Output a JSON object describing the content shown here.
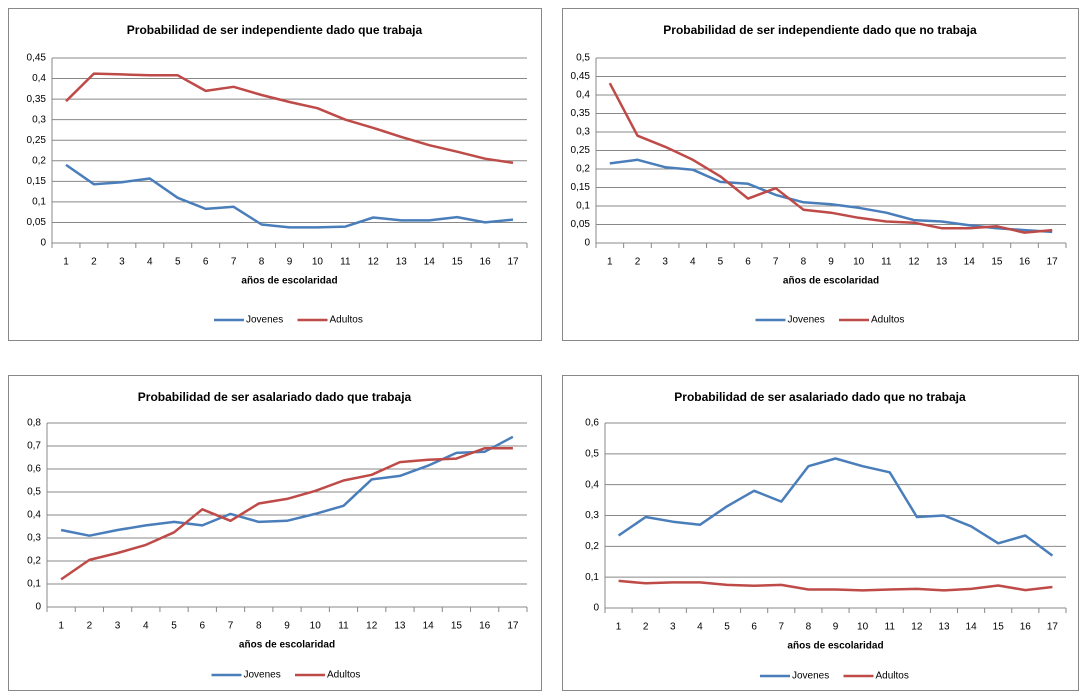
{
  "chart_data": [
    {
      "type": "line",
      "title": "Probabilidad de ser independiente dado que trabaja",
      "x_label": "años de escolaridad",
      "categories": [
        "1",
        "2",
        "3",
        "4",
        "5",
        "6",
        "7",
        "8",
        "9",
        "10",
        "11",
        "12",
        "13",
        "14",
        "15",
        "16",
        "17"
      ],
      "series": [
        {
          "name": "Jovenes",
          "color": "#4a7ebb",
          "values": [
            0.19,
            0.143,
            0.148,
            0.157,
            0.11,
            0.083,
            0.088,
            0.045,
            0.038,
            0.038,
            0.04,
            0.062,
            0.055,
            0.055,
            0.063,
            0.05,
            0.057
          ]
        },
        {
          "name": "Adultos",
          "color": "#be4b48",
          "values": [
            0.345,
            0.412,
            0.41,
            0.408,
            0.408,
            0.37,
            0.38,
            0.36,
            0.343,
            0.328,
            0.3,
            0.28,
            0.258,
            0.238,
            0.222,
            0.205,
            0.195
          ]
        }
      ],
      "ylim": [
        0,
        0.45
      ],
      "yticks": [
        0,
        {
          "value": 0.05,
          "label": "0,05"
        },
        {
          "value": 0.1,
          "label": "0,1"
        },
        {
          "value": 0.15,
          "label": "0,15"
        },
        {
          "value": 0.2,
          "label": "0,2"
        },
        {
          "value": 0.25,
          "label": "0,25"
        },
        {
          "value": 0.3,
          "label": "0,3"
        },
        {
          "value": 0.35,
          "label": "0,35"
        },
        {
          "value": 0.4,
          "label": "0,4"
        },
        {
          "value": 0.45,
          "label": "0,45"
        }
      ],
      "grid": true,
      "legend": "bottom"
    },
    {
      "type": "line",
      "title": "Probabilidad de ser independiente dado que no trabaja",
      "x_label": "años de escolaridad",
      "categories": [
        "1",
        "2",
        "3",
        "4",
        "5",
        "6",
        "7",
        "8",
        "9",
        "10",
        "11",
        "12",
        "13",
        "14",
        "15",
        "16",
        "17"
      ],
      "series": [
        {
          "name": "Jovenes",
          "color": "#4a7ebb",
          "values": [
            0.215,
            0.225,
            0.205,
            0.198,
            0.165,
            0.16,
            0.13,
            0.11,
            0.105,
            0.095,
            0.082,
            0.062,
            0.058,
            0.048,
            0.04,
            0.035,
            0.03
          ]
        },
        {
          "name": "Adultos",
          "color": "#be4b48",
          "values": [
            0.432,
            0.29,
            0.26,
            0.225,
            0.18,
            0.12,
            0.148,
            0.09,
            0.082,
            0.068,
            0.058,
            0.055,
            0.04,
            0.04,
            0.045,
            0.028,
            0.035
          ]
        }
      ],
      "ylim": [
        0,
        0.5
      ],
      "yticks": [
        0,
        {
          "value": 0.05,
          "label": "0,05"
        },
        {
          "value": 0.1,
          "label": "0,1"
        },
        {
          "value": 0.15,
          "label": "0,15"
        },
        {
          "value": 0.2,
          "label": "0,2"
        },
        {
          "value": 0.25,
          "label": "0,25"
        },
        {
          "value": 0.3,
          "label": "0,3"
        },
        {
          "value": 0.35,
          "label": "0,35"
        },
        {
          "value": 0.4,
          "label": "0,4"
        },
        {
          "value": 0.45,
          "label": "0,45"
        },
        {
          "value": 0.5,
          "label": "0,5"
        }
      ],
      "grid": true,
      "legend": "bottom"
    },
    {
      "type": "line",
      "title": "Probabilidad de ser asalariado dado que trabaja",
      "x_label": "años de escolaridad",
      "categories": [
        "1",
        "2",
        "3",
        "4",
        "5",
        "6",
        "7",
        "8",
        "9",
        "10",
        "11",
        "12",
        "13",
        "14",
        "15",
        "16",
        "17"
      ],
      "series": [
        {
          "name": "Jovenes",
          "color": "#4a7ebb",
          "values": [
            0.335,
            0.31,
            0.335,
            0.355,
            0.37,
            0.355,
            0.405,
            0.37,
            0.375,
            0.405,
            0.44,
            0.555,
            0.57,
            0.615,
            0.67,
            0.675,
            0.74
          ]
        },
        {
          "name": "Adultos",
          "color": "#be4b48",
          "values": [
            0.12,
            0.205,
            0.235,
            0.27,
            0.325,
            0.425,
            0.375,
            0.45,
            0.47,
            0.505,
            0.55,
            0.575,
            0.63,
            0.64,
            0.645,
            0.69,
            0.69
          ]
        }
      ],
      "ylim": [
        0,
        0.8
      ],
      "yticks": [
        0,
        {
          "value": 0.1,
          "label": "0,1"
        },
        {
          "value": 0.2,
          "label": "0,2"
        },
        {
          "value": 0.3,
          "label": "0,3"
        },
        {
          "value": 0.4,
          "label": "0,4"
        },
        {
          "value": 0.5,
          "label": "0,5"
        },
        {
          "value": 0.6,
          "label": "0,6"
        },
        {
          "value": 0.7,
          "label": "0,7"
        },
        {
          "value": 0.8,
          "label": "0,8"
        }
      ],
      "grid": true,
      "legend": "bottom"
    },
    {
      "type": "line",
      "title": "Probabilidad de ser asalariado dado que no trabaja",
      "x_label": "años de escolaridad",
      "categories": [
        "1",
        "2",
        "3",
        "4",
        "5",
        "6",
        "7",
        "8",
        "9",
        "10",
        "11",
        "12",
        "13",
        "14",
        "15",
        "16",
        "17"
      ],
      "series": [
        {
          "name": "Jovenes",
          "color": "#4a7ebb",
          "values": [
            0.235,
            0.295,
            0.28,
            0.27,
            0.33,
            0.38,
            0.345,
            0.46,
            0.485,
            0.46,
            0.44,
            0.295,
            0.3,
            0.265,
            0.21,
            0.235,
            0.17
          ]
        },
        {
          "name": "Adultos",
          "color": "#be4b48",
          "values": [
            0.088,
            0.08,
            0.083,
            0.083,
            0.075,
            0.072,
            0.075,
            0.06,
            0.06,
            0.057,
            0.06,
            0.062,
            0.057,
            0.062,
            0.073,
            0.058,
            0.068
          ]
        }
      ],
      "ylim": [
        0,
        0.6
      ],
      "yticks": [
        0,
        {
          "value": 0.1,
          "label": "0,1"
        },
        {
          "value": 0.2,
          "label": "0,2"
        },
        {
          "value": 0.3,
          "label": "0,3"
        },
        {
          "value": 0.4,
          "label": "0,4"
        },
        {
          "value": 0.5,
          "label": "0,5"
        },
        {
          "value": 0.6,
          "label": "0,6"
        }
      ],
      "grid": true,
      "legend": "bottom"
    }
  ]
}
